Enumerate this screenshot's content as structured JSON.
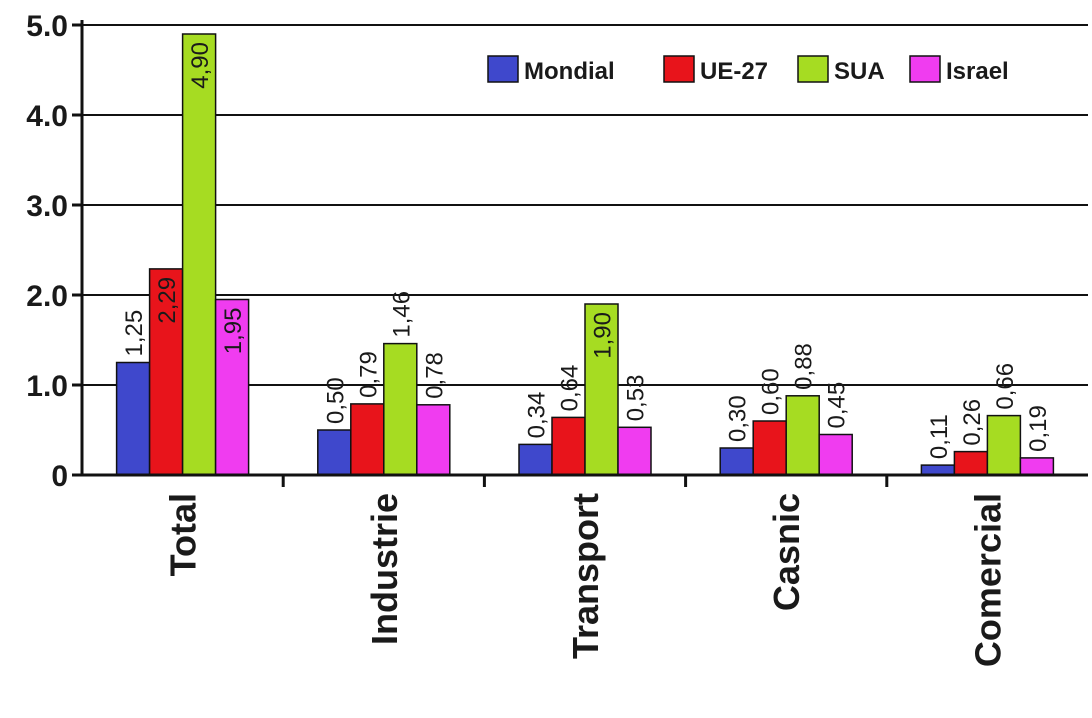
{
  "chart_data": {
    "type": "bar",
    "title": "",
    "xlabel": "",
    "ylabel": "",
    "ylim": [
      0,
      5
    ],
    "y_ticks": [
      "0",
      "1.0",
      "2.0",
      "3.0",
      "4.0",
      "5.0"
    ],
    "grid": true,
    "legend_position": "top-right",
    "categories": [
      "Total",
      "Industrie",
      "Transport",
      "Casnic",
      "Comercial"
    ],
    "series": [
      {
        "name": "Mondial",
        "color": "#3f48cc",
        "values": [
          1.25,
          0.5,
          0.34,
          0.3,
          0.11
        ],
        "labels": [
          "1,25",
          "0,50",
          "0,34",
          "0,30",
          "0,11"
        ]
      },
      {
        "name": "UE-27",
        "color": "#e8141b",
        "values": [
          2.29,
          0.79,
          0.64,
          0.6,
          0.26
        ],
        "labels": [
          "2,29",
          "0,79",
          "0,64",
          "0,60",
          "0,26"
        ]
      },
      {
        "name": "SUA",
        "color": "#a6dc22",
        "values": [
          4.9,
          1.46,
          1.9,
          0.88,
          0.66
        ],
        "labels": [
          "4,90",
          "1,46",
          "1,90",
          "0,88",
          "0,66"
        ]
      },
      {
        "name": "Israel",
        "color": "#f03cf0",
        "values": [
          1.95,
          0.78,
          0.53,
          0.45,
          0.19
        ],
        "labels": [
          "1,95",
          "0,78",
          "0,53",
          "0,45",
          "0,19"
        ]
      }
    ]
  }
}
